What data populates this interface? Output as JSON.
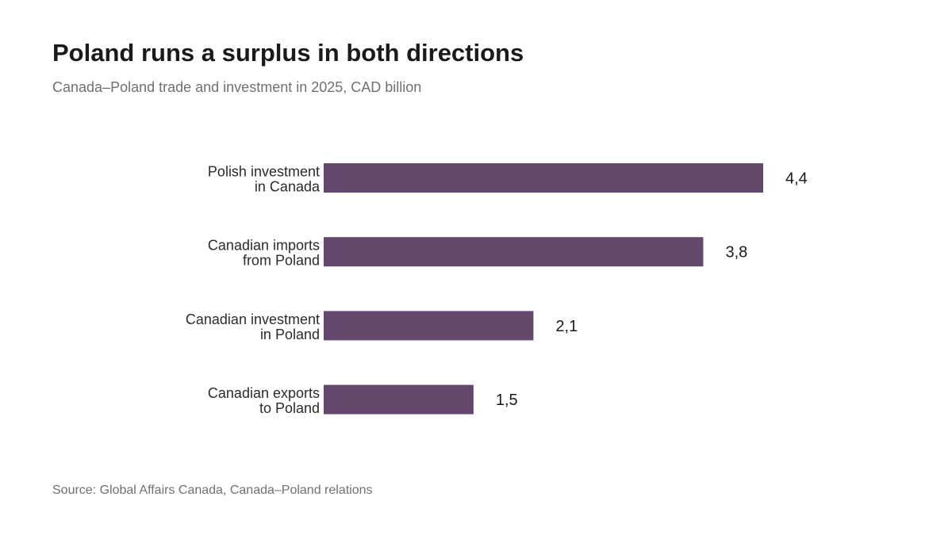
{
  "title": "Poland runs a surplus in both directions",
  "subtitle": "Canada–Poland trade and investment in 2025, CAD billion",
  "source": "Source: Global Affairs Canada, Canada–Poland relations",
  "colors": {
    "bar": "#64486e"
  },
  "chart_data": {
    "type": "bar",
    "orientation": "horizontal",
    "title": "Poland runs a surplus in both directions",
    "subtitle": "Canada–Poland trade and investment in 2025, CAD billion",
    "categories": [
      [
        "Polish investment",
        "in Canada"
      ],
      [
        "Canadian imports",
        "from Poland"
      ],
      [
        "Canadian investment",
        "in Poland"
      ],
      [
        "Canadian exports",
        "to Poland"
      ]
    ],
    "values": [
      4.4,
      3.8,
      2.1,
      1.5
    ],
    "value_labels": [
      "4,4",
      "3,8",
      "2,1",
      "1,5"
    ],
    "xlim": [
      0,
      4.4
    ],
    "grid": false,
    "legend": "none"
  }
}
